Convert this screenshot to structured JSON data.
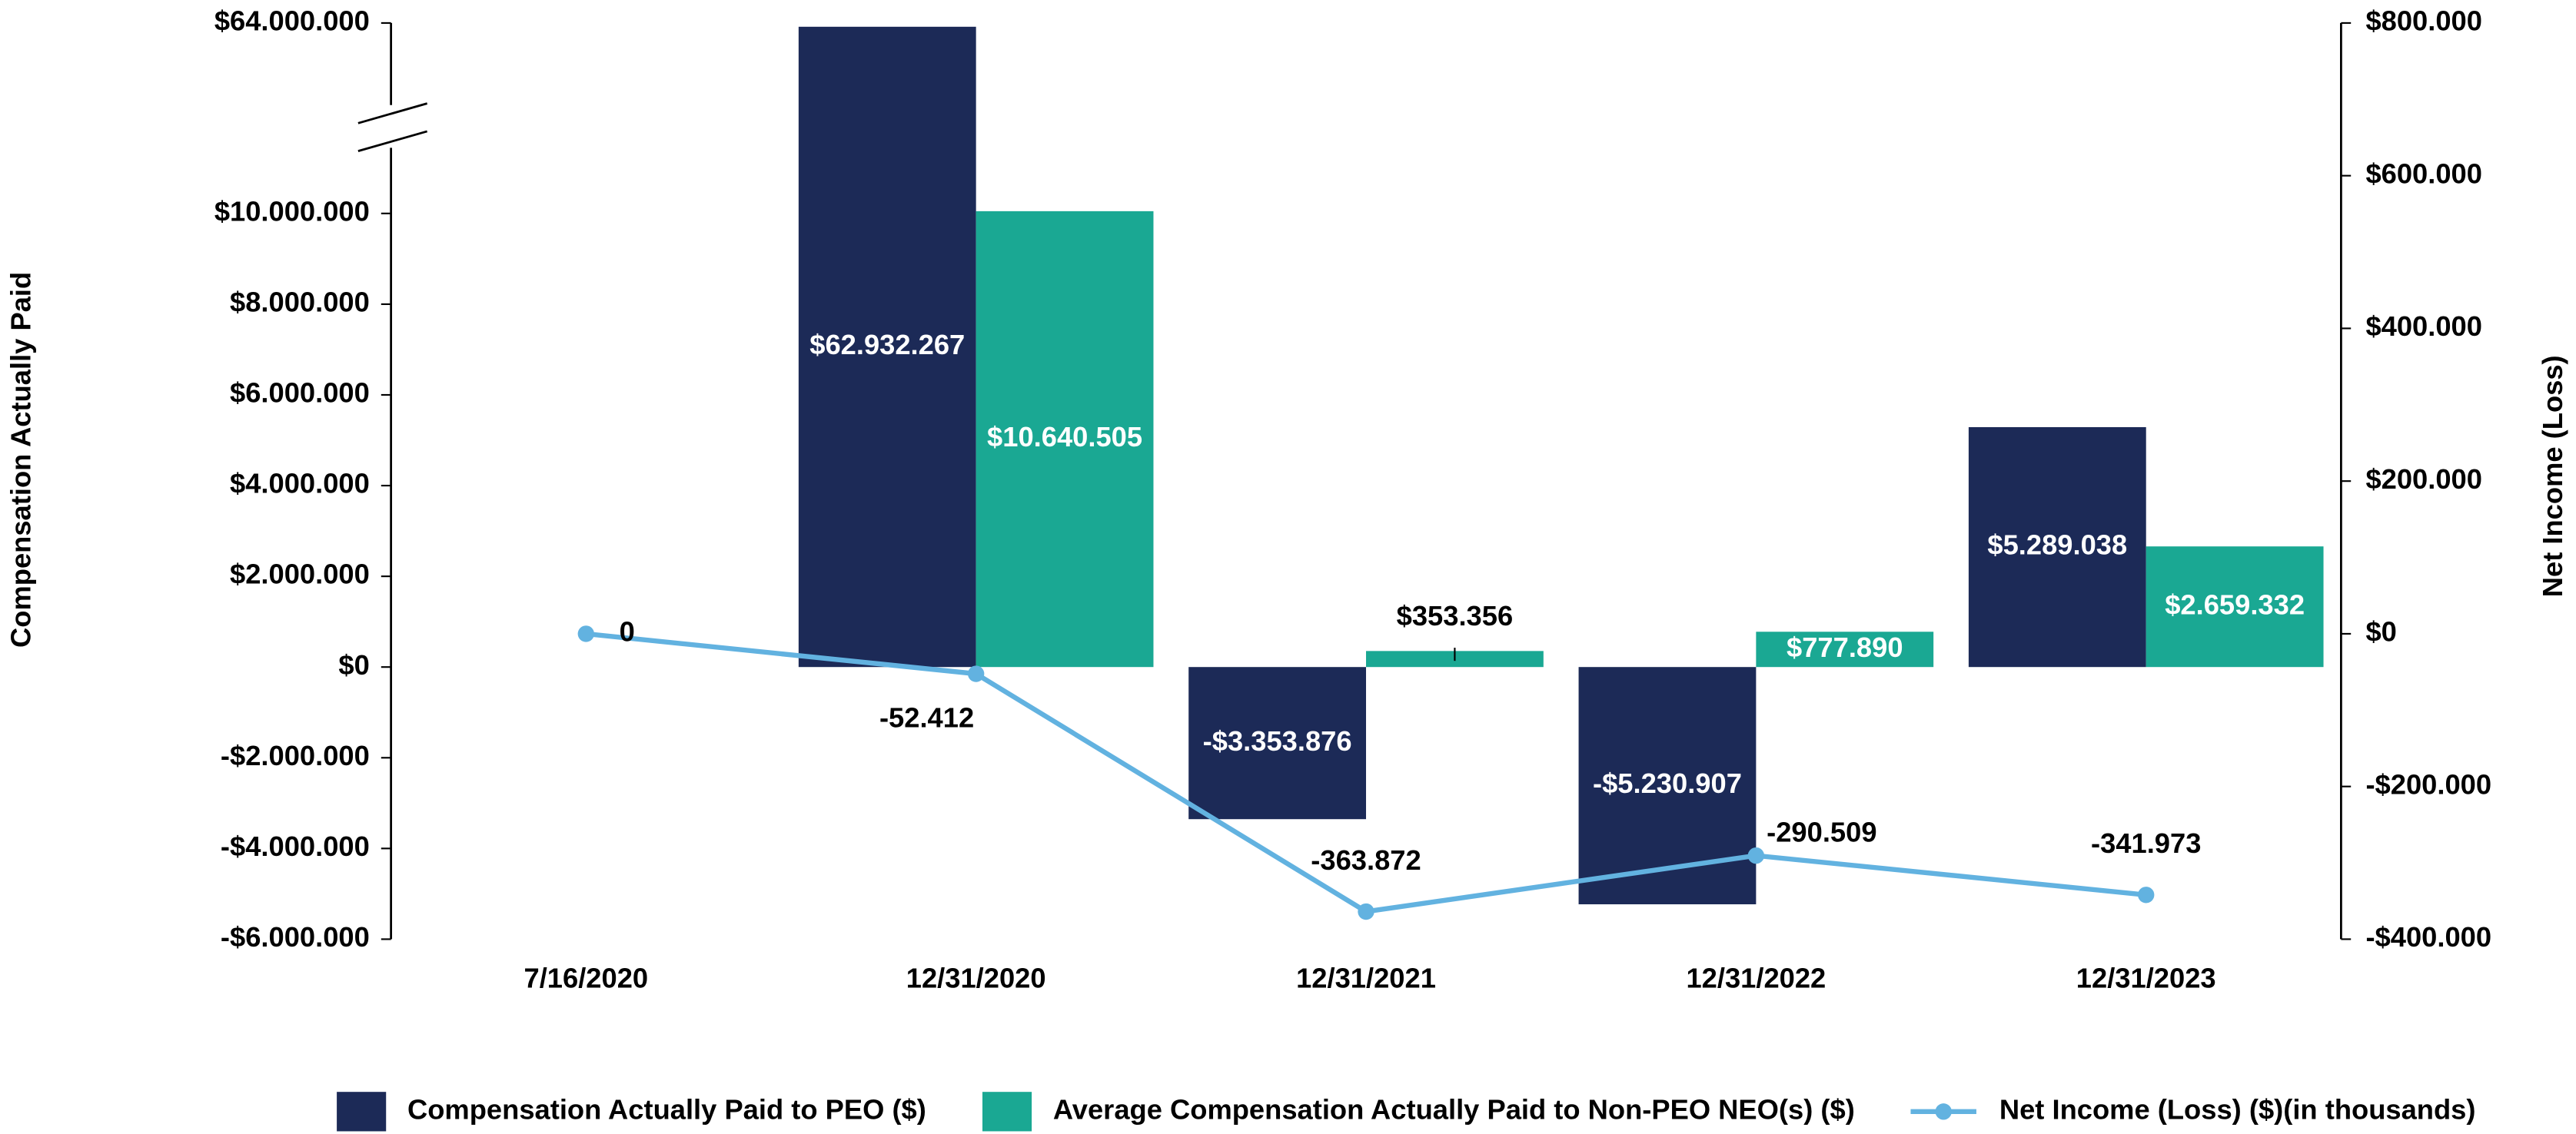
{
  "chart_data": {
    "type": "bar",
    "y_axis_label": "Compensation Actually Paid",
    "y2_axis_label": "Net Income (Loss)",
    "categories": [
      "7/16/2020",
      "12/31/2020",
      "12/31/2021",
      "12/31/2022",
      "12/31/2023"
    ],
    "series": [
      {
        "name": "Compensation Actually Paid to PEO ($)",
        "color": "#1c2a57",
        "values": [
          null,
          62932267,
          -3353876,
          -5230907,
          5289038
        ],
        "value_labels": [
          null,
          "$62.932.267",
          "-$3.353.876",
          "-$5.230.907",
          "$5.289.038"
        ]
      },
      {
        "name": "Average Compensation Actually Paid to Non-PEO NEO(s) ($)",
        "color": "#1aa893",
        "values": [
          null,
          10640505,
          353356,
          777890,
          2659332
        ],
        "value_labels": [
          null,
          "$10.640.505",
          "$353.356",
          "$777.890",
          "$2.659.332"
        ]
      },
      {
        "name": "Net Income (Loss) ($)(in thousands)",
        "type": "line",
        "axis": "y2",
        "color": "#62b2e0",
        "values": [
          0,
          -52412,
          -363872,
          -290509,
          -341973
        ],
        "value_labels": [
          "0",
          "-52.412",
          "-363.872",
          "-290.509",
          "-341.973"
        ]
      }
    ],
    "ylim": [
      -6000000,
      64000000
    ],
    "yticks": [
      {
        "value": -6000000,
        "label": "-$6.000.000"
      },
      {
        "value": -4000000,
        "label": "-$4.000.000"
      },
      {
        "value": -2000000,
        "label": "-$2.000.000"
      },
      {
        "value": 0,
        "label": "$0"
      },
      {
        "value": 2000000,
        "label": "$2.000.000"
      },
      {
        "value": 4000000,
        "label": "$4.000.000"
      },
      {
        "value": 6000000,
        "label": "$6.000.000"
      },
      {
        "value": 8000000,
        "label": "$8.000.000"
      },
      {
        "value": 10000000,
        "label": "$10.000.000"
      },
      {
        "value": 64000000,
        "label": "$64.000.000"
      }
    ],
    "axis_break": true,
    "y2lim": [
      -400000,
      800000
    ],
    "y2ticks": [
      {
        "value": -400000,
        "label": "-$400.000"
      },
      {
        "value": -200000,
        "label": "-$200.000"
      },
      {
        "value": 0,
        "label": "$0"
      },
      {
        "value": 200000,
        "label": "$200.000"
      },
      {
        "value": 400000,
        "label": "$400.000"
      },
      {
        "value": 600000,
        "label": "$600.000"
      },
      {
        "value": 800000,
        "label": "$800.000"
      }
    ],
    "grid": false,
    "legend": "bottom"
  }
}
